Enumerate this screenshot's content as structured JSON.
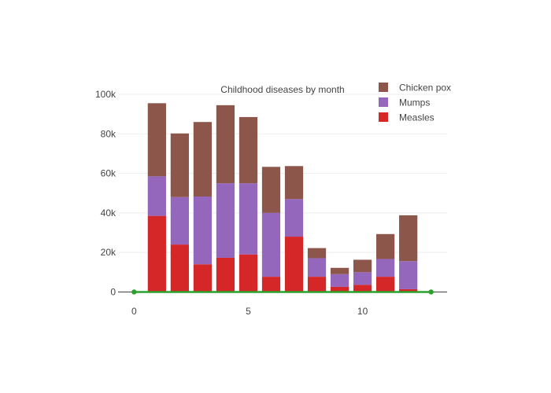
{
  "chart_data": {
    "type": "bar",
    "barmode": "stack",
    "title": "Childhood diseases by month",
    "xlabel": "",
    "ylabel": "",
    "x": [
      1,
      2,
      3,
      4,
      5,
      6,
      7,
      8,
      9,
      10,
      11,
      12
    ],
    "xlim": [
      -0.7,
      13.7
    ],
    "ylim": [
      -3000,
      100000
    ],
    "x_ticks": [
      0,
      5,
      10
    ],
    "x_tick_labels": [
      "0",
      "5",
      "10"
    ],
    "y_ticks": [
      0,
      20000,
      40000,
      60000,
      80000,
      100000
    ],
    "y_tick_labels": [
      "0",
      "20k",
      "40k",
      "60k",
      "80k",
      "100k"
    ],
    "grid": true,
    "legend_position": "top-right",
    "series": [
      {
        "name": "Measles",
        "color": "#d62728",
        "values": [
          38500,
          24000,
          14000,
          17300,
          19000,
          7700,
          28000,
          7700,
          2600,
          3600,
          7700,
          1400
        ]
      },
      {
        "name": "Mumps",
        "color": "#9467bd",
        "values": [
          20000,
          24000,
          34300,
          37700,
          36000,
          32300,
          19000,
          9400,
          6400,
          6400,
          9000,
          14200
        ]
      },
      {
        "name": "Chicken pox",
        "color": "#8c564b",
        "values": [
          37000,
          32200,
          37700,
          39500,
          33500,
          23300,
          16700,
          5100,
          3200,
          6300,
          12600,
          23200
        ]
      }
    ],
    "overlay_line": {
      "x": [
        0,
        13
      ],
      "y": [
        0,
        0
      ],
      "color": "#2ca02c"
    }
  }
}
